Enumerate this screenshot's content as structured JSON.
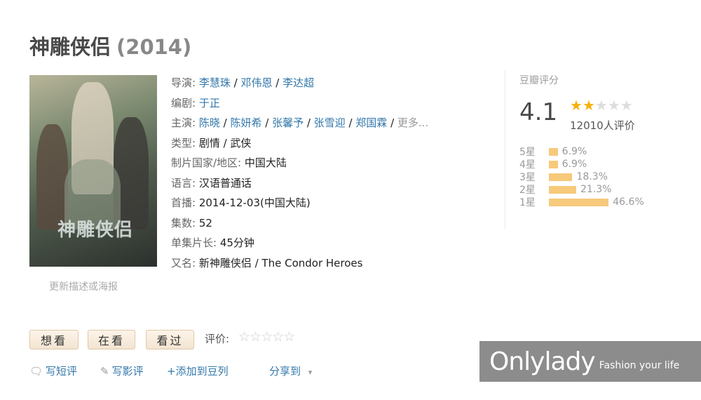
{
  "title": {
    "name": "神雕侠侣",
    "year": "(2014)"
  },
  "poster": {
    "title_art": "神雕侠侣",
    "caption": "更新描述或海报"
  },
  "info": {
    "director": {
      "label": "导演:",
      "values": [
        "李慧珠",
        "邓伟恩",
        "李达超"
      ]
    },
    "writer": {
      "label": "编剧:",
      "value": "于正"
    },
    "cast": {
      "label": "主演:",
      "values": [
        "陈晓",
        "陈妍希",
        "张馨予",
        "张雪迎",
        "郑国霖"
      ],
      "more": "更多..."
    },
    "genre": {
      "label": "类型:",
      "value": "剧情 / 武侠"
    },
    "country": {
      "label": "制片国家/地区:",
      "value": "中国大陆"
    },
    "language": {
      "label": "语言:",
      "value": "汉语普通话"
    },
    "premiere": {
      "label": "首播:",
      "value": "2014-12-03(中国大陆)"
    },
    "episodes": {
      "label": "集数:",
      "value": "52"
    },
    "runtime": {
      "label": "单集片长:",
      "value": "45分钟"
    },
    "aka": {
      "label": "又名:",
      "value": "新神雕侠侣 / The Condor Heroes"
    }
  },
  "rating": {
    "title": "豆瓣评分",
    "score": "4.1",
    "stars_filled": 2,
    "stars_total": 5,
    "votes": "12010人评价",
    "distribution": [
      {
        "label": "5星",
        "percent": 6.9,
        "text": "6.9%"
      },
      {
        "label": "4星",
        "percent": 6.9,
        "text": "6.9%"
      },
      {
        "label": "3星",
        "percent": 18.3,
        "text": "18.3%"
      },
      {
        "label": "2星",
        "percent": 21.3,
        "text": "21.3%"
      },
      {
        "label": "1星",
        "percent": 46.6,
        "text": "46.6%"
      }
    ],
    "star_color": "#f5b10a",
    "bar_color": "#f7c97a"
  },
  "actions": {
    "want": "想看",
    "watching": "在看",
    "watched": "看过",
    "rate_label": "评价:",
    "rate_stars": "☆☆☆☆☆",
    "short_review": "写短评",
    "review": "写影评",
    "add_list": "+添加到豆列",
    "share": "分享到",
    "share_arrow": "▾"
  },
  "watermark": {
    "brand": "Onlylady",
    "tagline": "Fashion your life"
  }
}
